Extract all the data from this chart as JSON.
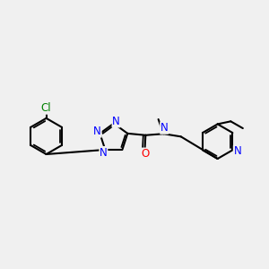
{
  "bg_color": "#f0f0f0",
  "bond_color": "#000000",
  "bond_width": 1.5,
  "atom_colors": {
    "N": "#0000ff",
    "O": "#ff0000",
    "Cl": "#008000"
  },
  "font_size": 8.5
}
